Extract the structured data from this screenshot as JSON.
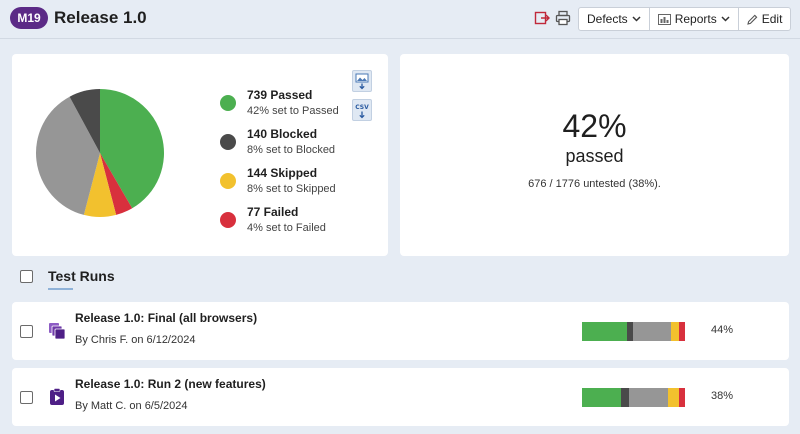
{
  "header": {
    "badge": "M19",
    "title": "Release 1.0",
    "defects_label": "Defects",
    "reports_label": "Reports",
    "edit_label": "Edit",
    "icons": [
      "export-icon",
      "print-icon"
    ]
  },
  "colors": {
    "passed": "#4caf50",
    "blocked": "#4a4a4a",
    "untested": "#969696",
    "skipped": "#f2c12e",
    "failed": "#d8303d",
    "brand": "#5b2a86"
  },
  "stats": {
    "legend": [
      {
        "count_label": "739 Passed",
        "sub_label": "42% set to Passed"
      },
      {
        "count_label": "140 Blocked",
        "sub_label": "8% set to Blocked"
      },
      {
        "count_label": "144 Skipped",
        "sub_label": "8% set to Skipped"
      },
      {
        "count_label": "77 Failed",
        "sub_label": "4% set to Failed"
      }
    ],
    "export_buttons": [
      "image-export-icon",
      "csv-export-icon"
    ]
  },
  "chart_data": {
    "type": "pie",
    "categories": [
      "Passed",
      "Blocked",
      "Untested",
      "Skipped",
      "Failed"
    ],
    "values": [
      739,
      140,
      676,
      144,
      77
    ]
  },
  "summary": {
    "percent": "42%",
    "label": "passed",
    "untested_note": "676 / 1776 untested (38%)."
  },
  "test_runs": {
    "title": "Test Runs",
    "runs": [
      {
        "title": "Release 1.0: Final (all browsers)",
        "meta": "By Chris F. on 6/12/2024",
        "percent": "44%",
        "icon": "test-plan-icon",
        "progress": [
          0.44,
          0.06,
          0.36,
          0.08,
          0.06
        ]
      },
      {
        "title": "Release 1.0: Run 2 (new features)",
        "meta": "By Matt C. on 6/5/2024",
        "percent": "38%",
        "icon": "test-run-icon",
        "progress": [
          0.38,
          0.08,
          0.38,
          0.1,
          0.06
        ]
      }
    ]
  }
}
